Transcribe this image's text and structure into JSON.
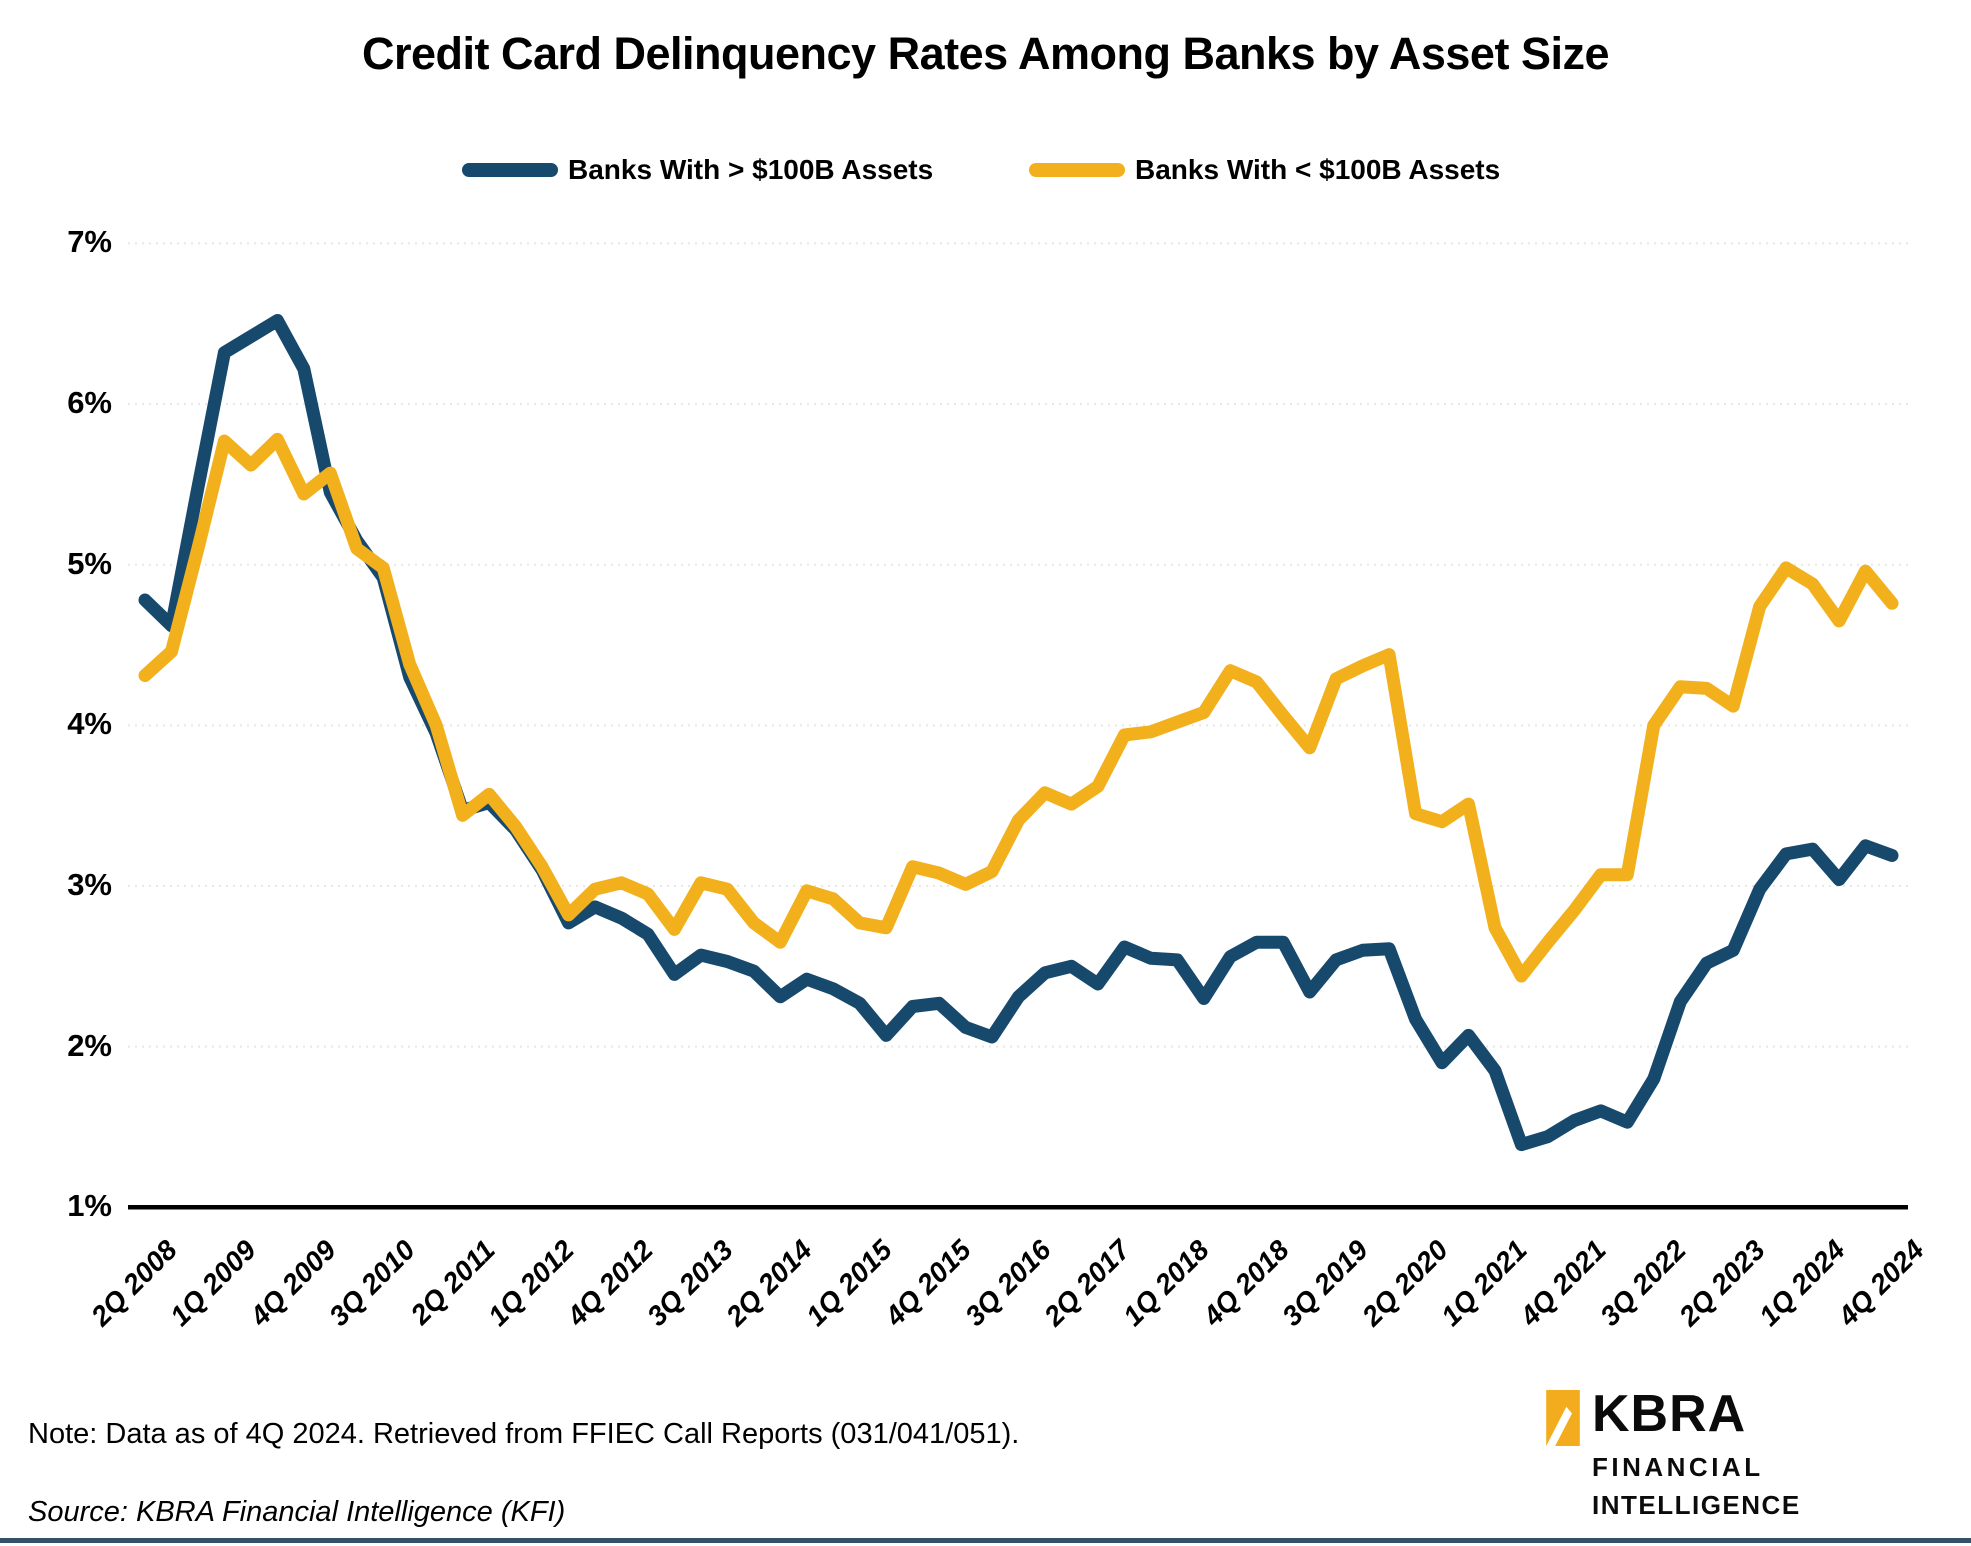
{
  "title": "Credit Card Delinquency Rates Among Banks by Asset Size",
  "legend": [
    {
      "label": "Banks With > $100B Assets",
      "color": "#17496D"
    },
    {
      "label": "Banks With < $100B Assets",
      "color": "#F2B01C"
    }
  ],
  "note": "Note: Data as of 4Q 2024. Retrieved from FFIEC Call Reports (031/041/051).",
  "source": "Source: KBRA Financial Intelligence (KFI)",
  "logo": {
    "line1": "KBRA",
    "line2": "FINANCIAL",
    "line3": "INTELLIGENCE",
    "icon_color": "#F2AC1D"
  },
  "chart_data": {
    "type": "line",
    "title": "Credit Card Delinquency Rates Among Banks by Asset Size",
    "xlabel": "",
    "ylabel": "",
    "ylim": [
      1,
      7
    ],
    "grid": true,
    "legend_position": "top",
    "y_ticks": [
      "1%",
      "2%",
      "3%",
      "4%",
      "5%",
      "6%",
      "7%"
    ],
    "x_tick_every": 3,
    "x_labels": [
      "2Q 2008",
      "3Q 2008",
      "4Q 2008",
      "1Q 2009",
      "2Q 2009",
      "3Q 2009",
      "4Q 2009",
      "1Q 2010",
      "2Q 2010",
      "3Q 2010",
      "4Q 2010",
      "1Q 2011",
      "2Q 2011",
      "3Q 2011",
      "4Q 2011",
      "1Q 2012",
      "2Q 2012",
      "3Q 2012",
      "4Q 2012",
      "1Q 2013",
      "2Q 2013",
      "3Q 2013",
      "4Q 2013",
      "1Q 2014",
      "2Q 2014",
      "3Q 2014",
      "4Q 2014",
      "1Q 2015",
      "2Q 2015",
      "3Q 2015",
      "4Q 2015",
      "1Q 2016",
      "2Q 2016",
      "3Q 2016",
      "4Q 2016",
      "1Q 2017",
      "2Q 2017",
      "3Q 2017",
      "4Q 2017",
      "1Q 2018",
      "2Q 2018",
      "3Q 2018",
      "4Q 2018",
      "1Q 2019",
      "2Q 2019",
      "3Q 2019",
      "4Q 2019",
      "1Q 2020",
      "2Q 2020",
      "3Q 2020",
      "4Q 2020",
      "1Q 2021",
      "2Q 2021",
      "3Q 2021",
      "4Q 2021",
      "1Q 2022",
      "2Q 2022",
      "3Q 2022",
      "4Q 2022",
      "1Q 2023",
      "2Q 2023",
      "3Q 2023",
      "4Q 2023",
      "1Q 2024",
      "2Q 2024",
      "3Q 2024",
      "4Q 2024"
    ],
    "series": [
      {
        "name": "Banks With > $100B Assets",
        "color": "#17496D",
        "values": [
          4.78,
          4.62,
          5.48,
          6.32,
          6.42,
          6.52,
          6.22,
          5.45,
          5.15,
          4.92,
          4.3,
          3.95,
          3.47,
          3.52,
          3.35,
          3.1,
          2.77,
          2.87,
          2.8,
          2.7,
          2.45,
          2.57,
          2.53,
          2.47,
          2.31,
          2.42,
          2.36,
          2.27,
          2.07,
          2.25,
          2.27,
          2.12,
          2.06,
          2.31,
          2.46,
          2.5,
          2.39,
          2.62,
          2.55,
          2.54,
          2.3,
          2.56,
          2.65,
          2.65,
          2.34,
          2.54,
          2.6,
          2.61,
          2.17,
          1.9,
          2.07,
          1.85,
          1.39,
          1.44,
          1.54,
          1.6,
          1.53,
          1.8,
          2.28,
          2.52,
          2.6,
          2.98,
          3.2,
          3.23,
          3.04,
          3.25,
          3.19
        ]
      },
      {
        "name": "Banks With < $100B Assets",
        "color": "#F2B01C",
        "values": [
          4.31,
          4.46,
          5.1,
          5.77,
          5.62,
          5.78,
          5.44,
          5.57,
          5.1,
          4.98,
          4.38,
          4.0,
          3.44,
          3.57,
          3.37,
          3.12,
          2.82,
          2.98,
          3.02,
          2.95,
          2.73,
          3.02,
          2.98,
          2.77,
          2.65,
          2.97,
          2.92,
          2.77,
          2.74,
          3.12,
          3.08,
          3.01,
          3.09,
          3.41,
          3.58,
          3.51,
          3.62,
          3.94,
          3.96,
          4.02,
          4.08,
          4.34,
          4.27,
          4.06,
          3.86,
          4.29,
          4.37,
          4.44,
          3.45,
          3.4,
          3.51,
          2.74,
          2.44,
          2.65,
          2.85,
          3.07,
          3.07,
          4.0,
          4.24,
          4.23,
          4.12,
          4.74,
          4.98,
          4.88,
          4.65,
          4.96,
          4.76
        ]
      }
    ]
  }
}
